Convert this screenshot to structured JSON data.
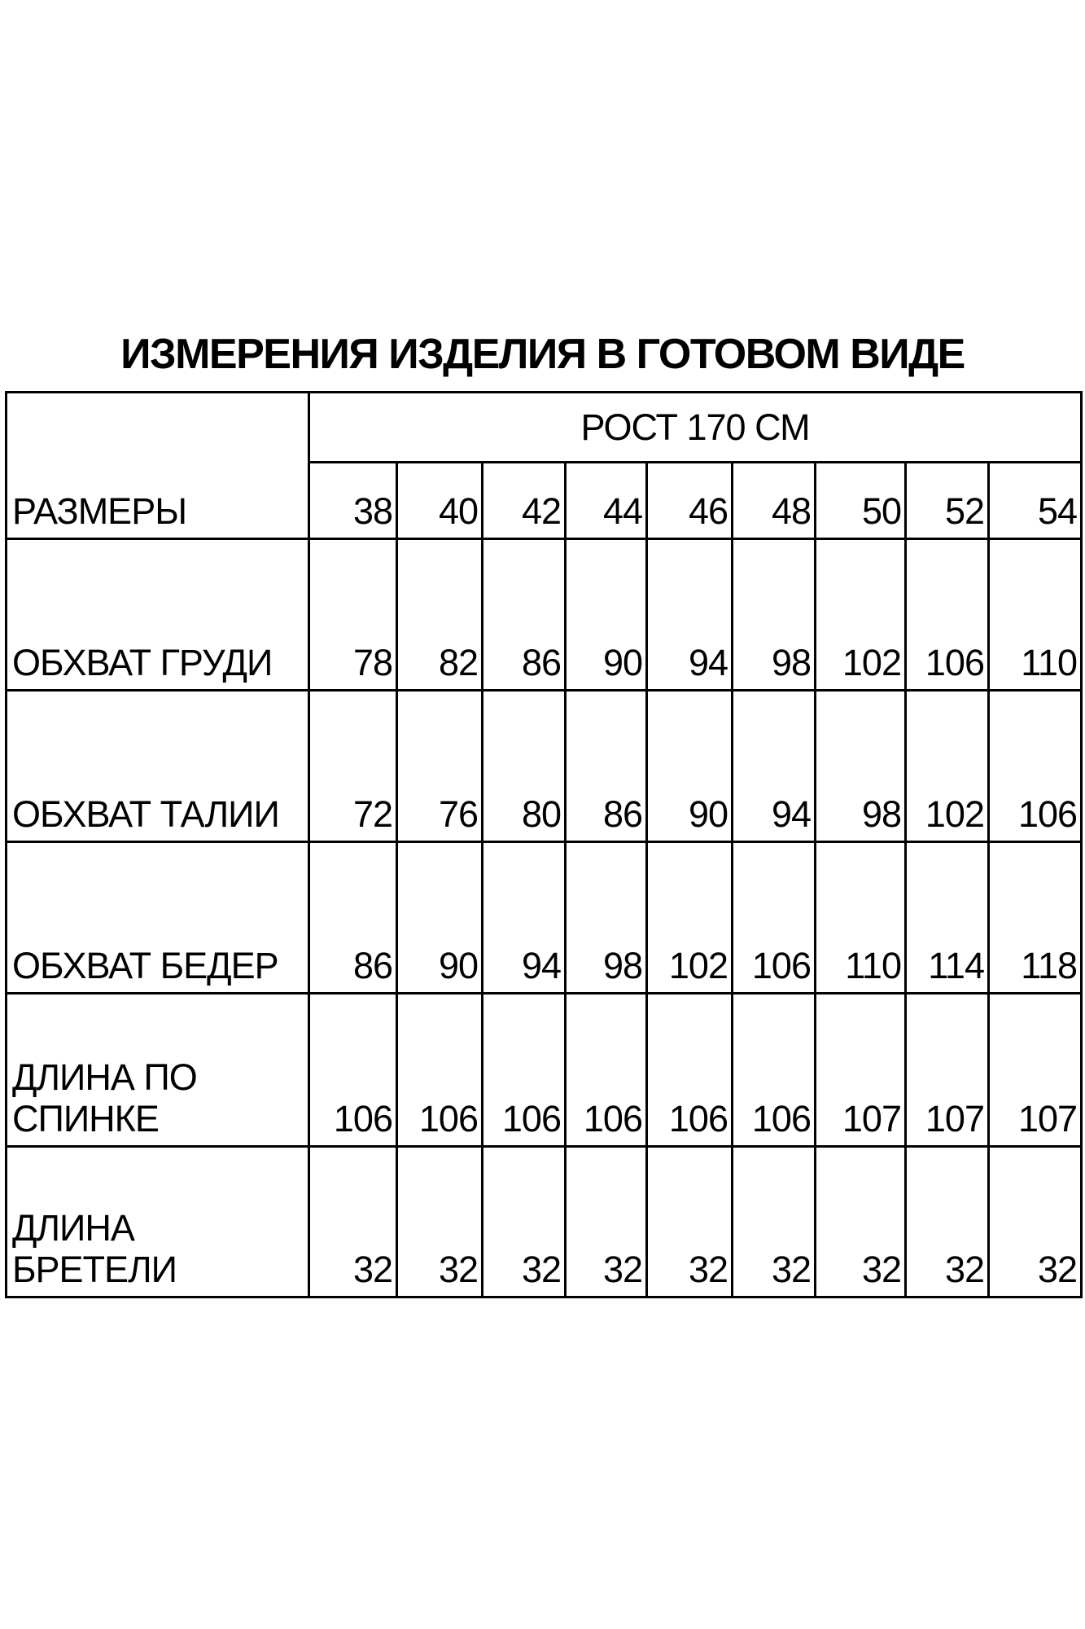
{
  "title": "ИЗМЕРЕНИЯ ИЗДЕЛИЯ В ГОТОВОМ ВИДЕ",
  "table": {
    "group_header": "РОСТ 170 СМ",
    "size_label": "РАЗМЕРЫ",
    "sizes": [
      "38",
      "40",
      "42",
      "44",
      "46",
      "48",
      "50",
      "52",
      "54"
    ],
    "rows": [
      {
        "label": "ОБХВАТ ГРУДИ",
        "values": [
          "78",
          "82",
          "86",
          "90",
          "94",
          "98",
          "102",
          "106",
          "110"
        ]
      },
      {
        "label": "ОБХВАТ ТАЛИИ",
        "values": [
          "72",
          "76",
          "80",
          "86",
          "90",
          "94",
          "98",
          "102",
          "106"
        ]
      },
      {
        "label": "ОБХВАТ БЕДЕР",
        "values": [
          "86",
          "90",
          "94",
          "98",
          "102",
          "106",
          "110",
          "114",
          "118"
        ]
      },
      {
        "label": "ДЛИНА ПО СПИНКЕ",
        "values": [
          "106",
          "106",
          "106",
          "106",
          "106",
          "106",
          "107",
          "107",
          "107"
        ]
      },
      {
        "label": "ДЛИНА БРЕТЕЛИ",
        "values": [
          "32",
          "32",
          "32",
          "32",
          "32",
          "32",
          "32",
          "32",
          "32"
        ]
      }
    ]
  }
}
